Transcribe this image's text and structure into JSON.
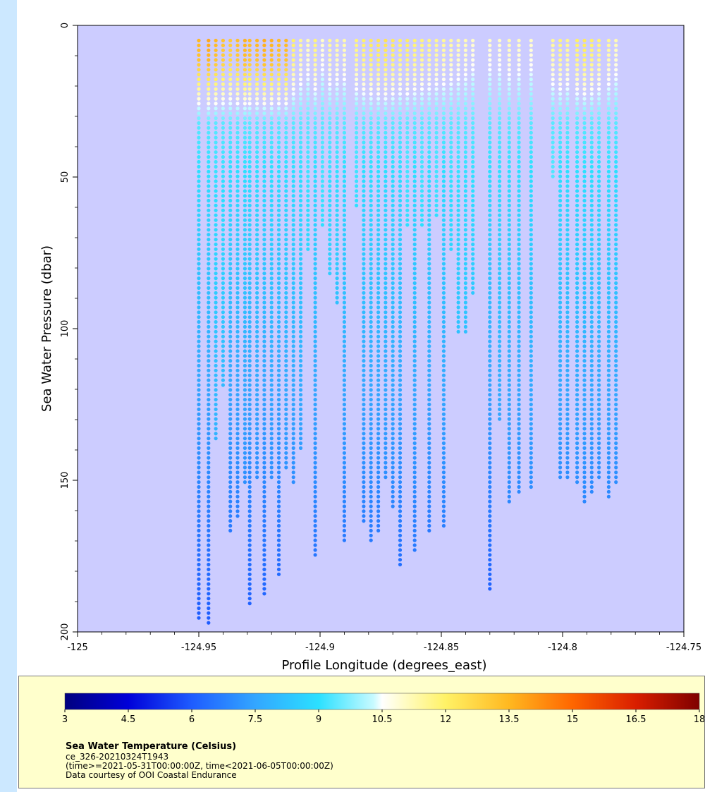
{
  "chart_data": {
    "type": "scatter",
    "xlabel": "Profile Longitude (degrees_east)",
    "ylabel": "Sea Water Pressure (dbar)",
    "xlim": [
      -125,
      -124.75
    ],
    "ylim": [
      200,
      0
    ],
    "x_ticks": [
      -125,
      -124.95,
      -124.9,
      -124.85,
      -124.8,
      -124.75
    ],
    "x_tick_labels": [
      "-125",
      "-124.95",
      "-124.9",
      "-124.85",
      "-124.8",
      "-124.75"
    ],
    "y_ticks": [
      0,
      50,
      100,
      150,
      200
    ],
    "y_tick_labels": [
      "0",
      "50",
      "100",
      "150",
      "200"
    ],
    "grid": false,
    "color_variable": "Sea Water Temperature (Celsius)",
    "colorbar": {
      "range": [
        3,
        18
      ],
      "ticks": [
        3,
        4.5,
        6,
        7.5,
        9,
        10.5,
        12,
        13.5,
        15,
        16.5,
        18
      ],
      "tick_labels": [
        "3",
        "4.5",
        "6",
        "7.5",
        "9",
        "10.5",
        "12",
        "13.5",
        "15",
        "16.5",
        "18"
      ],
      "stops": [
        {
          "value": 3,
          "color": "#00007f"
        },
        {
          "value": 4.5,
          "color": "#0000d9"
        },
        {
          "value": 6,
          "color": "#1e5cff"
        },
        {
          "value": 7.5,
          "color": "#33a6ff"
        },
        {
          "value": 9,
          "color": "#2be0ff"
        },
        {
          "value": 10.3,
          "color": "#c8faff"
        },
        {
          "value": 10.5,
          "color": "#ffffff"
        },
        {
          "value": 11,
          "color": "#fffcc8"
        },
        {
          "value": 12,
          "color": "#fff266"
        },
        {
          "value": 13.5,
          "color": "#ffb820"
        },
        {
          "value": 15,
          "color": "#ff6600"
        },
        {
          "value": 16.5,
          "color": "#d91e00"
        },
        {
          "value": 18,
          "color": "#7f0000"
        }
      ]
    },
    "profiles": [
      {
        "x": -124.95,
        "top": 5,
        "bottom": 196,
        "t_surface": 13.5,
        "t_bottom": 6.0
      },
      {
        "x": -124.946,
        "top": 5,
        "bottom": 197,
        "t_surface": 13.8,
        "t_bottom": 6.0
      },
      {
        "x": -124.943,
        "top": 5,
        "bottom": 137,
        "t_surface": 13.5,
        "t_bottom": 7.8
      },
      {
        "x": -124.94,
        "top": 5,
        "bottom": 120,
        "t_surface": 13.2,
        "t_bottom": 8.0
      },
      {
        "x": -124.937,
        "top": 5,
        "bottom": 167,
        "t_surface": 13.0,
        "t_bottom": 6.6
      },
      {
        "x": -124.934,
        "top": 5,
        "bottom": 162,
        "t_surface": 13.3,
        "t_bottom": 6.7
      },
      {
        "x": -124.931,
        "top": 5,
        "bottom": 152,
        "t_surface": 13.6,
        "t_bottom": 7.0
      },
      {
        "x": -124.929,
        "top": 5,
        "bottom": 192,
        "t_surface": 13.4,
        "t_bottom": 6.1
      },
      {
        "x": -124.926,
        "top": 5,
        "bottom": 150,
        "t_surface": 13.5,
        "t_bottom": 7.0
      },
      {
        "x": -124.923,
        "top": 5,
        "bottom": 188,
        "t_surface": 13.7,
        "t_bottom": 6.2
      },
      {
        "x": -124.92,
        "top": 5,
        "bottom": 150,
        "t_surface": 13.6,
        "t_bottom": 7.0
      },
      {
        "x": -124.917,
        "top": 5,
        "bottom": 181,
        "t_surface": 13.4,
        "t_bottom": 6.3
      },
      {
        "x": -124.914,
        "top": 5,
        "bottom": 147,
        "t_surface": 13.5,
        "t_bottom": 7.1
      },
      {
        "x": -124.911,
        "top": 5,
        "bottom": 151,
        "t_surface": 12.0,
        "t_bottom": 7.0
      },
      {
        "x": -124.908,
        "top": 5,
        "bottom": 140,
        "t_surface": 11.5,
        "t_bottom": 7.3
      },
      {
        "x": -124.905,
        "top": 5,
        "bottom": 75,
        "t_surface": 11.2,
        "t_bottom": 8.8
      },
      {
        "x": -124.902,
        "top": 5,
        "bottom": 176,
        "t_surface": 11.8,
        "t_bottom": 6.5
      },
      {
        "x": -124.899,
        "top": 5,
        "bottom": 67,
        "t_surface": 11.0,
        "t_bottom": 9.0
      },
      {
        "x": -124.896,
        "top": 5,
        "bottom": 82,
        "t_surface": 11.5,
        "t_bottom": 8.5
      },
      {
        "x": -124.893,
        "top": 5,
        "bottom": 92,
        "t_surface": 11.4,
        "t_bottom": 8.2
      },
      {
        "x": -124.89,
        "top": 5,
        "bottom": 170,
        "t_surface": 11.3,
        "t_bottom": 6.6
      },
      {
        "x": -124.885,
        "top": 5,
        "bottom": 60,
        "t_surface": 11.8,
        "t_bottom": 9.0
      },
      {
        "x": -124.882,
        "top": 5,
        "bottom": 164,
        "t_surface": 12.0,
        "t_bottom": 6.7
      },
      {
        "x": -124.879,
        "top": 5,
        "bottom": 170,
        "t_surface": 12.2,
        "t_bottom": 6.6
      },
      {
        "x": -124.876,
        "top": 5,
        "bottom": 168,
        "t_surface": 12.3,
        "t_bottom": 6.6
      },
      {
        "x": -124.873,
        "top": 5,
        "bottom": 150,
        "t_surface": 12.4,
        "t_bottom": 7.0
      },
      {
        "x": -124.87,
        "top": 5,
        "bottom": 160,
        "t_surface": 12.2,
        "t_bottom": 6.8
      },
      {
        "x": -124.867,
        "top": 5,
        "bottom": 178,
        "t_surface": 12.0,
        "t_bottom": 6.4
      },
      {
        "x": -124.864,
        "top": 5,
        "bottom": 66,
        "t_surface": 12.1,
        "t_bottom": 9.0
      },
      {
        "x": -124.861,
        "top": 5,
        "bottom": 173,
        "t_surface": 11.9,
        "t_bottom": 6.6
      },
      {
        "x": -124.858,
        "top": 5,
        "bottom": 66,
        "t_surface": 11.8,
        "t_bottom": 9.0
      },
      {
        "x": -124.855,
        "top": 5,
        "bottom": 167,
        "t_surface": 11.7,
        "t_bottom": 6.6
      },
      {
        "x": -124.852,
        "top": 5,
        "bottom": 64,
        "t_surface": 11.6,
        "t_bottom": 9.0
      },
      {
        "x": -124.849,
        "top": 5,
        "bottom": 166,
        "t_surface": 11.5,
        "t_bottom": 6.7
      },
      {
        "x": -124.846,
        "top": 5,
        "bottom": 75,
        "t_surface": 11.4,
        "t_bottom": 8.7
      },
      {
        "x": -124.843,
        "top": 5,
        "bottom": 102,
        "t_surface": 11.3,
        "t_bottom": 8.2
      },
      {
        "x": -124.84,
        "top": 5,
        "bottom": 101,
        "t_surface": 11.2,
        "t_bottom": 8.2
      },
      {
        "x": -124.837,
        "top": 5,
        "bottom": 89,
        "t_surface": 11.0,
        "t_bottom": 8.4
      },
      {
        "x": -124.83,
        "top": 5,
        "bottom": 187,
        "t_surface": 11.0,
        "t_bottom": 6.1
      },
      {
        "x": -124.826,
        "top": 5,
        "bottom": 130,
        "t_surface": 11.0,
        "t_bottom": 7.5
      },
      {
        "x": -124.822,
        "top": 5,
        "bottom": 157,
        "t_surface": 11.2,
        "t_bottom": 6.9
      },
      {
        "x": -124.818,
        "top": 5,
        "bottom": 155,
        "t_surface": 11.1,
        "t_bottom": 6.9
      },
      {
        "x": -124.813,
        "top": 5,
        "bottom": 153,
        "t_surface": 11.0,
        "t_bottom": 7.0
      },
      {
        "x": -124.804,
        "top": 5,
        "bottom": 50,
        "t_surface": 11.5,
        "t_bottom": 9.3
      },
      {
        "x": -124.801,
        "top": 5,
        "bottom": 150,
        "t_surface": 11.8,
        "t_bottom": 7.0
      },
      {
        "x": -124.798,
        "top": 5,
        "bottom": 149,
        "t_surface": 11.6,
        "t_bottom": 7.0
      },
      {
        "x": -124.794,
        "top": 5,
        "bottom": 152,
        "t_surface": 12.0,
        "t_bottom": 7.0
      },
      {
        "x": -124.791,
        "top": 5,
        "bottom": 157,
        "t_surface": 12.2,
        "t_bottom": 6.9
      },
      {
        "x": -124.788,
        "top": 5,
        "bottom": 155,
        "t_surface": 12.0,
        "t_bottom": 6.9
      },
      {
        "x": -124.785,
        "top": 5,
        "bottom": 150,
        "t_surface": 11.8,
        "t_bottom": 7.0
      },
      {
        "x": -124.781,
        "top": 5,
        "bottom": 156,
        "t_surface": 11.5,
        "t_bottom": 6.9
      },
      {
        "x": -124.778,
        "top": 5,
        "bottom": 151,
        "t_surface": 11.2,
        "t_bottom": 7.0
      }
    ]
  },
  "legend": {
    "title": "Sea Water Temperature (Celsius)",
    "line1": "ce_326-20210324T1943",
    "line2": "(time>=2021-05-31T00:00:00Z, time<2021-06-05T00:00:00Z)",
    "line3": "Data courtesy of OOI Coastal Endurance"
  },
  "colors": {
    "plot_background": "#ccccff",
    "legend_background": "#ffffcc",
    "page_strip": "#cce8ff"
  }
}
